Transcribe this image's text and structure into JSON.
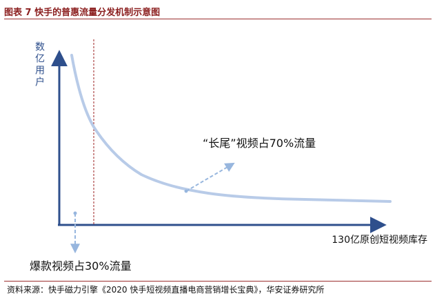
{
  "figure": {
    "title": "图表 7 快手的普惠流量分发机制示意图",
    "source": "资料来源：快手磁力引擎《2020 快手短视频直播电商营销增长宝典》，华安证券研究所"
  },
  "diagram": {
    "y_axis_label": "数亿用户",
    "x_axis_label": "130亿原创短视频库存",
    "long_tail_label": "“长尾”视频占70%流量",
    "hit_label": "爆款视频占30%流量",
    "colors": {
      "axis": "#2e4f8c",
      "curve": "#b8cbe8",
      "arrow": "#97b6de",
      "divider": "#9b1c1c",
      "title": "#8b1e1e"
    }
  }
}
